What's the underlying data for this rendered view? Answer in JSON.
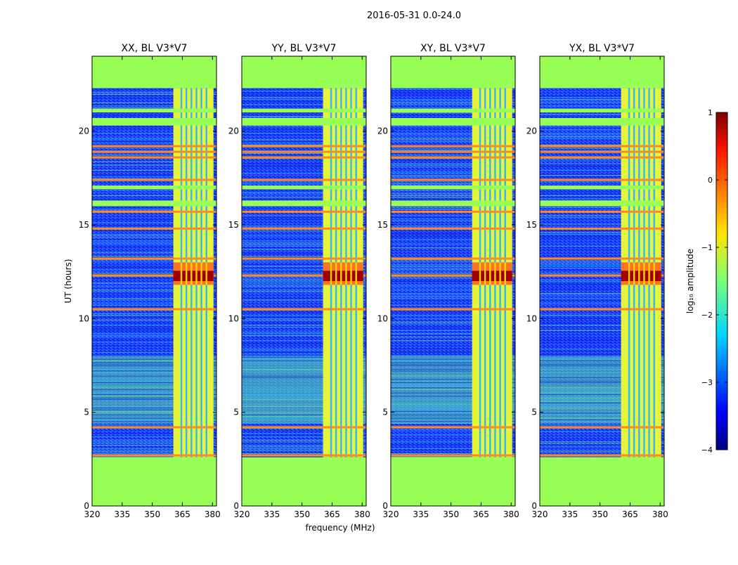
{
  "suptitle": "2016-05-31 0.0-24.0",
  "chart_data": {
    "type": "heatmap",
    "description_units": "time (hours UT) vs frequency (MHz), color = log10 amplitude",
    "xlabel": "frequency (MHz)",
    "ylabel": "UT (hours)",
    "xlim": [
      320,
      382
    ],
    "ylim": [
      0,
      24
    ],
    "xticks": [
      320,
      335,
      350,
      365,
      380
    ],
    "yticks": [
      0,
      5,
      10,
      15,
      20
    ],
    "panels": [
      {
        "title": "XX, BL V3*V7"
      },
      {
        "title": "YY, BL V3*V7"
      },
      {
        "title": "XY, BL V3*V7"
      },
      {
        "title": "YX, BL V3*V7"
      }
    ],
    "observed_hours": [
      2.6,
      22.3
    ],
    "flagged_hours": [
      [
        16.0,
        16.3
      ],
      [
        16.9,
        17.1
      ],
      [
        20.3,
        20.7
      ],
      [
        21.0,
        21.2
      ]
    ],
    "high_band_mhz": [
      360.5,
      380.5
    ],
    "rfi_channels_mhz": [
      364.5,
      367.0,
      369.5,
      372.0,
      374.5,
      377.0
    ],
    "strong_rows_hours": [
      19.2,
      18.9,
      18.6,
      17.4,
      15.7,
      14.8,
      13.2,
      12.3,
      10.5,
      4.2,
      2.7
    ],
    "peak_hours": [
      11.8,
      13.0
    ],
    "colorbar": {
      "label": "log₁₀ amplitude",
      "vmin": -4,
      "vmax": 1,
      "ticks": [
        "1",
        "0",
        "−1",
        "−2",
        "−3",
        "−4"
      ]
    },
    "colors": {
      "flagged": "#98FF55",
      "background": "#1A3CFF",
      "band": "#E6F53A",
      "strong": "#FF8A1A",
      "peak": "#A00000"
    }
  }
}
